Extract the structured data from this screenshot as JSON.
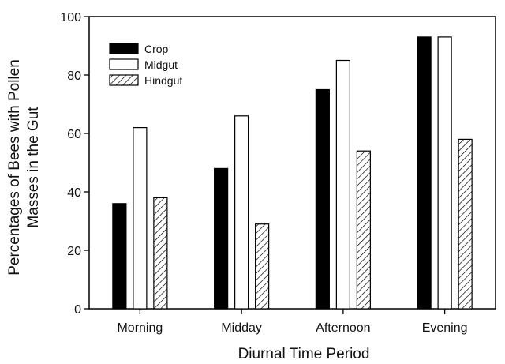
{
  "chart_data": {
    "type": "bar",
    "xlabel": "Diurnal Time Period",
    "ylabel_lines": [
      "Percentages of Bees with Pollen",
      "Masses in the Gut"
    ],
    "ylim": [
      0,
      100
    ],
    "yticks": [
      0,
      20,
      40,
      60,
      80,
      100
    ],
    "categories": [
      "Morning",
      "Midday",
      "Afternoon",
      "Evening"
    ],
    "series": [
      {
        "name": "Crop",
        "fill": "solid",
        "color": "#000000",
        "values": [
          36,
          48,
          75,
          93
        ]
      },
      {
        "name": "Midgut",
        "fill": "open",
        "color": "#ffffff",
        "values": [
          62,
          66,
          85,
          93
        ]
      },
      {
        "name": "Hindgut",
        "fill": "hatched",
        "color": "#ffffff",
        "values": [
          38,
          29,
          54,
          58
        ]
      }
    ],
    "legend_position": "top-left",
    "grid": false
  }
}
